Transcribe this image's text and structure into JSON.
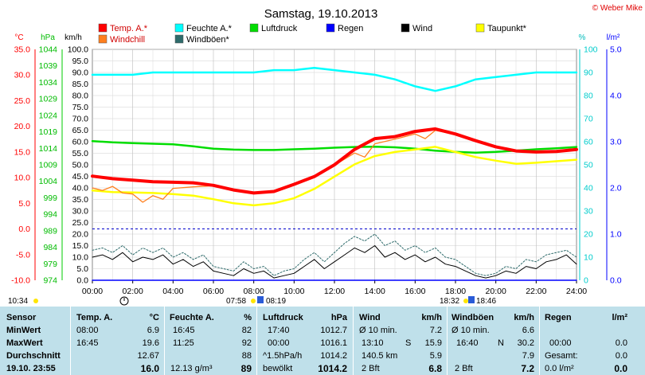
{
  "title": "Samstag, 19.10.2013",
  "copyright": "© Weber Mike",
  "unit_labels": {
    "temp": "°C",
    "press": "hPa",
    "wind": "km/h",
    "hum": "%",
    "rain": "l/m²"
  },
  "legend": [
    {
      "label": "Temp. A.*",
      "color": "#ff0000"
    },
    {
      "label": "Windchill",
      "color": "#ff7f1e"
    },
    {
      "label": "Feuchte A.*",
      "color": "#00ffff"
    },
    {
      "label": "Windböen*",
      "color": "#2e6b6b"
    },
    {
      "label": "Luftdruck",
      "color": "#00dd00"
    },
    {
      "label": "Regen",
      "color": "#0000ff"
    },
    {
      "label": "Wind",
      "color": "#000000"
    },
    {
      "label": "Taupunkt*",
      "color": "#ffff00"
    }
  ],
  "markers": {
    "sunrise": "07:58",
    "sunset": "18:32",
    "moonset": "08:19",
    "moonrise": "18:46",
    "daylength": "10:34"
  },
  "chart_data": {
    "type": "line",
    "x_unit": "hours",
    "x_ticks": [
      "00:00",
      "02:00",
      "04:00",
      "06:00",
      "08:00",
      "10:00",
      "12:00",
      "14:00",
      "16:00",
      "18:00",
      "20:00",
      "22:00",
      "24:00"
    ],
    "axes": {
      "temp": {
        "label": "°C",
        "range": [
          -10,
          35
        ],
        "ticks": [
          "35.0",
          "30.0",
          "25.0",
          "20.0",
          "15.0",
          "10.0",
          "5.0",
          "0.0",
          "-5.0",
          "-10.0"
        ]
      },
      "press": {
        "label": "hPa",
        "range": [
          974,
          1044
        ],
        "ticks": [
          "1044",
          "1039",
          "1034",
          "1029",
          "1024",
          "1019",
          "1014",
          "1009",
          "1004",
          "999",
          "994",
          "989",
          "984",
          "979",
          "974"
        ]
      },
      "wind": {
        "label": "km/h",
        "range": [
          0,
          100
        ],
        "ticks": [
          "100.0",
          "95.0",
          "90.0",
          "85.0",
          "80.0",
          "75.0",
          "70.0",
          "65.0",
          "60.0",
          "55.0",
          "50.0",
          "45.0",
          "40.0",
          "35.0",
          "30.0",
          "25.0",
          "20.0",
          "15.0",
          "10.0",
          "5.0",
          "0.0"
        ]
      },
      "hum": {
        "label": "%",
        "range": [
          0,
          100
        ],
        "ticks": [
          "100",
          "90",
          "80",
          "70",
          "60",
          "50",
          "40",
          "30",
          "20",
          "10",
          "0"
        ]
      },
      "rain": {
        "label": "l/m²",
        "range": [
          0,
          5
        ],
        "ticks": [
          "5.0",
          "4.0",
          "3.0",
          "2.0",
          "1.0",
          "0.0"
        ]
      }
    },
    "series": [
      {
        "name": "Temp. A.*",
        "axis": "temp",
        "color": "#ff0000",
        "x": [
          0,
          1,
          2,
          3,
          4,
          5,
          6,
          7,
          8,
          9,
          10,
          11,
          12,
          13,
          14,
          15,
          16,
          17,
          18,
          19,
          20,
          21,
          22,
          23,
          24
        ],
        "y": [
          10.3,
          9.8,
          9.5,
          9.2,
          9.1,
          9.0,
          8.5,
          7.6,
          7.0,
          7.3,
          8.7,
          10.2,
          12.5,
          15.5,
          17.6,
          18.0,
          19.0,
          19.5,
          18.5,
          17.2,
          16.0,
          15.2,
          15.0,
          15.1,
          15.5
        ]
      },
      {
        "name": "Windchill",
        "axis": "temp",
        "color": "#ff7f1e",
        "x": [
          0,
          0.5,
          1,
          1.5,
          2,
          2.5,
          3,
          3.5,
          4,
          5,
          6,
          7,
          8,
          9,
          10,
          11,
          12,
          13,
          13.5,
          14,
          15,
          16,
          16.5,
          17,
          18,
          19,
          20,
          21,
          22,
          23,
          24
        ],
        "y": [
          8.0,
          7.5,
          8.3,
          7.0,
          6.8,
          5.2,
          6.5,
          5.8,
          7.9,
          8.2,
          8.4,
          7.6,
          7.0,
          7.4,
          8.6,
          10.1,
          12.4,
          14.8,
          14.0,
          16.6,
          17.5,
          18.5,
          17.6,
          19.2,
          18.4,
          17.1,
          15.9,
          15.2,
          14.9,
          15.0,
          15.4
        ]
      },
      {
        "name": "Taupunkt*",
        "axis": "temp",
        "color": "#ffff00",
        "x": [
          0,
          1,
          2,
          3,
          4,
          5,
          6,
          7,
          8,
          9,
          10,
          11,
          12,
          13,
          14,
          15,
          16,
          17,
          18,
          19,
          20,
          21,
          22,
          23,
          24
        ],
        "y": [
          7.5,
          7.2,
          7.1,
          7.0,
          6.8,
          6.5,
          5.8,
          5.0,
          4.6,
          5.0,
          6.0,
          7.8,
          10.2,
          12.6,
          14.2,
          15.0,
          15.5,
          16.0,
          15.0,
          14.0,
          13.3,
          12.7,
          12.9,
          13.2,
          13.5
        ]
      },
      {
        "name": "Feuchte A.*",
        "axis": "hum",
        "color": "#00ffff",
        "x": [
          0,
          1,
          2,
          3,
          4,
          5,
          6,
          7,
          8,
          9,
          10,
          11,
          12,
          13,
          14,
          15,
          16,
          17,
          18,
          19,
          20,
          21,
          22,
          23,
          24
        ],
        "y": [
          89,
          89,
          89,
          90,
          90,
          90,
          90,
          90,
          90,
          91,
          91,
          92,
          91,
          90,
          89,
          87,
          84,
          82,
          84,
          87,
          88,
          89,
          90,
          90,
          90
        ]
      },
      {
        "name": "Luftdruck",
        "axis": "press",
        "color": "#00dd00",
        "x": [
          0,
          1,
          2,
          3,
          4,
          5,
          6,
          7,
          8,
          9,
          10,
          11,
          12,
          13,
          14,
          15,
          16,
          17,
          18,
          19,
          20,
          21,
          22,
          23,
          24
        ],
        "y": [
          1016.2,
          1015.8,
          1015.6,
          1015.4,
          1015.2,
          1014.6,
          1013.9,
          1013.6,
          1013.5,
          1013.5,
          1013.7,
          1013.9,
          1014.2,
          1014.4,
          1014.5,
          1014.3,
          1013.9,
          1013.3,
          1012.9,
          1012.7,
          1012.9,
          1013.3,
          1013.7,
          1014.0,
          1014.4
        ]
      },
      {
        "name": "Wind",
        "axis": "wind",
        "color": "#000000",
        "x": [
          0,
          0.5,
          1,
          1.5,
          2,
          2.5,
          3,
          3.5,
          4,
          4.5,
          5,
          5.5,
          6,
          6.5,
          7,
          7.5,
          8,
          8.5,
          9,
          9.5,
          10,
          10.5,
          11,
          11.5,
          12,
          12.5,
          13,
          13.5,
          14,
          14.5,
          15,
          15.5,
          16,
          16.5,
          17,
          17.5,
          18,
          18.5,
          19,
          19.5,
          20,
          20.5,
          21,
          21.5,
          22,
          22.5,
          23,
          23.5,
          24
        ],
        "y": [
          10,
          11,
          9,
          12,
          8,
          10,
          9,
          11,
          7,
          9,
          6,
          8,
          4,
          3,
          2,
          5,
          3,
          4,
          1,
          2,
          3,
          6,
          9,
          5,
          8,
          11,
          14,
          12,
          15,
          10,
          12,
          9,
          11,
          8,
          10,
          7,
          6,
          4,
          2,
          1,
          2,
          4,
          3,
          6,
          5,
          8,
          9,
          11,
          7
        ]
      },
      {
        "name": "Windböen*",
        "axis": "wind",
        "color": "#2e6b6b",
        "x": [
          0,
          0.5,
          1,
          1.5,
          2,
          2.5,
          3,
          3.5,
          4,
          4.5,
          5,
          5.5,
          6,
          6.5,
          7,
          7.5,
          8,
          8.5,
          9,
          9.5,
          10,
          10.5,
          11,
          11.5,
          12,
          12.5,
          13,
          13.5,
          14,
          14.5,
          15,
          15.5,
          16,
          16.5,
          17,
          17.5,
          18,
          18.5,
          19,
          19.5,
          20,
          20.5,
          21,
          21.5,
          22,
          22.5,
          23,
          23.5,
          24
        ],
        "y": [
          13,
          14,
          12,
          15,
          11,
          14,
          12,
          14,
          10,
          12,
          9,
          11,
          6,
          5,
          4,
          8,
          5,
          6,
          2,
          4,
          5,
          9,
          12,
          8,
          12,
          16,
          19,
          17,
          20,
          15,
          17,
          13,
          15,
          12,
          14,
          10,
          9,
          6,
          3,
          2,
          3,
          6,
          5,
          9,
          8,
          11,
          12,
          13,
          10
        ]
      },
      {
        "name": "Regen",
        "axis": "rain",
        "color": "#0000ff",
        "x": [
          0,
          24
        ],
        "y": [
          0,
          0
        ]
      }
    ]
  },
  "table": {
    "headers": {
      "sensor": "Sensor",
      "temp": "Temp. A.",
      "temp_unit": "°C",
      "hum": "Feuchte A.",
      "hum_unit": "%",
      "press": "Luftdruck",
      "press_unit": "hPa",
      "wind": "Wind",
      "wind_unit": "km/h",
      "gust": "Windböen",
      "gust_unit": "km/h",
      "rain": "Regen",
      "rain_unit": "l/m²"
    },
    "rows": {
      "min": {
        "label": "MinWert",
        "t_time": "08:00",
        "t_val": "6.9",
        "h_time": "16:45",
        "h_val": "82",
        "p_time": "17:40",
        "p_val": "1012.7",
        "w_desc": "Ø 10 min.",
        "w_val": "7.2",
        "g_desc": "Ø 10 min.",
        "g_val": "6.6"
      },
      "max": {
        "label": "MaxWert",
        "t_time": "16:45",
        "t_val": "19.6",
        "h_time": "11:25",
        "h_val": "92",
        "p_time": "00:00",
        "p_val": "1016.1",
        "w_time": "13:10",
        "w_dir": "S",
        "w_val": "15.9",
        "g_time": "16:40",
        "g_dir": "N",
        "g_val": "30.2",
        "r_time": "00:00",
        "r_val": "0.0"
      },
      "avg": {
        "label": "Durchschnitt",
        "t_val": "12.67",
        "h_val": "88",
        "p_desc": "^1.5hPa/h",
        "p_val": "1014.2",
        "w_desc": "140.5 km",
        "w_val": "5.9",
        "g_val": "7.9",
        "r_desc": "Gesamt:",
        "r_val": "0.0"
      },
      "now": {
        "label": "19.10. 23:55",
        "t_val": "16.0",
        "h_desc": "12.13 g/m³",
        "h_val": "89",
        "p_desc": "bewölkt",
        "p_val": "1014.2",
        "w_desc": "2 Bft",
        "w_val": "6.8",
        "g_desc": "2 Bft",
        "g_val": "7.2",
        "r_desc": "0.0 l/m²",
        "r_val": "0.0"
      }
    }
  }
}
